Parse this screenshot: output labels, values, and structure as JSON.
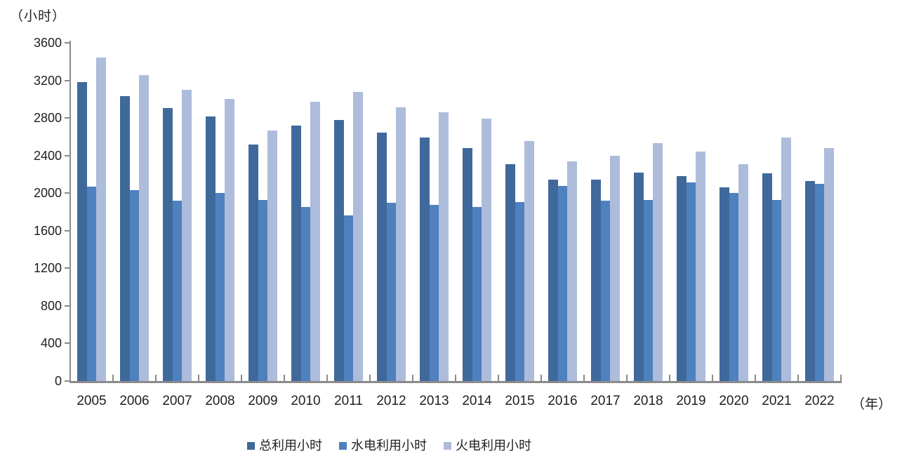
{
  "chart_data": {
    "type": "bar",
    "title": "",
    "y_unit_label": "（小时）",
    "x_unit_label": "（年）",
    "categories": [
      "2005",
      "2006",
      "2007",
      "2008",
      "2009",
      "2010",
      "2011",
      "2012",
      "2013",
      "2014",
      "2015",
      "2016",
      "2017",
      "2018",
      "2019",
      "2020",
      "2021",
      "2022"
    ],
    "series": [
      {
        "key": "total",
        "name": "总利用小时",
        "color": "#40699B",
        "values": [
          3180,
          3035,
          2905,
          2815,
          2520,
          2720,
          2775,
          2645,
          2590,
          2480,
          2305,
          2145,
          2140,
          2220,
          2180,
          2065,
          2210,
          2130
        ]
      },
      {
        "key": "hydro",
        "name": "水电利用小时",
        "color": "#4E81BD",
        "values": [
          2070,
          2035,
          1920,
          2000,
          1930,
          1850,
          1765,
          1900,
          1875,
          1850,
          1905,
          2080,
          1920,
          1925,
          2115,
          2000,
          1930,
          2100
        ]
      },
      {
        "key": "thermal",
        "name": "火电利用小时",
        "color": "#ADBCDB",
        "values": [
          3440,
          3255,
          3100,
          3000,
          2665,
          2970,
          3080,
          2915,
          2860,
          2790,
          2555,
          2335,
          2400,
          2530,
          2445,
          2310,
          2590,
          2480
        ]
      }
    ],
    "ylim": [
      0,
      3600
    ],
    "y_ticks": [
      0,
      400,
      800,
      1200,
      1600,
      2000,
      2400,
      2800,
      3200,
      3600
    ],
    "grid": false,
    "legend_position": "bottom-left",
    "axis_color": "#8A8A8A",
    "text_color": "#1F1F1F",
    "background_color": "#FFFFFF"
  }
}
